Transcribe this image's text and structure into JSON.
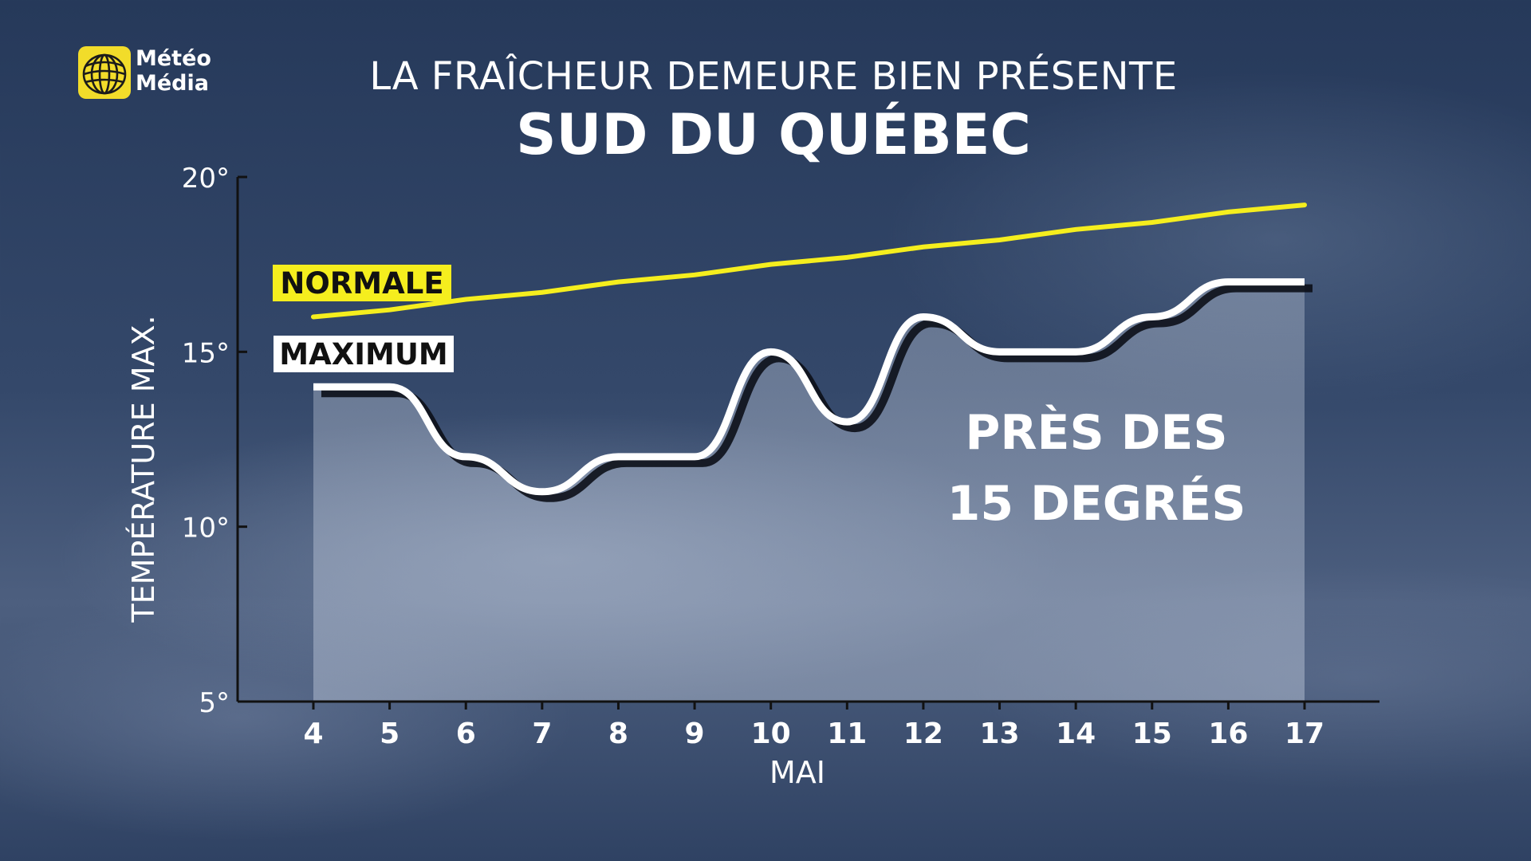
{
  "brand": {
    "logo_line1": "Météo",
    "logo_line2": "Média"
  },
  "header": {
    "subtitle": "LA FRAÎCHEUR DEMEURE BIEN PRÉSENTE",
    "title": "SUD DU QUÉBEC"
  },
  "annotation": {
    "line1": "PRÈS DES",
    "line2": "15 DEGRÉS"
  },
  "colors": {
    "normale": "#f5ee1e",
    "maximum": "#ffffff",
    "axis": "#111111"
  },
  "chart_data": {
    "type": "line",
    "xlabel": "MAI",
    "ylabel": "TEMPÉRATURE MAX.",
    "x": [
      4,
      5,
      6,
      7,
      8,
      9,
      10,
      11,
      12,
      13,
      14,
      15,
      16,
      17
    ],
    "ylim": [
      5,
      20
    ],
    "yticks": [
      5,
      10,
      15,
      20
    ],
    "ytick_labels": [
      "5°",
      "10°",
      "15°",
      "20°"
    ],
    "series": [
      {
        "name": "MAXIMUM",
        "values": [
          14,
          14,
          12,
          11,
          12,
          12,
          15,
          13,
          16,
          15,
          15,
          16,
          17,
          17
        ]
      },
      {
        "name": "NORMALE",
        "values": [
          16,
          16.2,
          16.5,
          16.7,
          17,
          17.2,
          17.5,
          17.7,
          18,
          18.2,
          18.5,
          18.7,
          19,
          19.2
        ]
      }
    ]
  }
}
